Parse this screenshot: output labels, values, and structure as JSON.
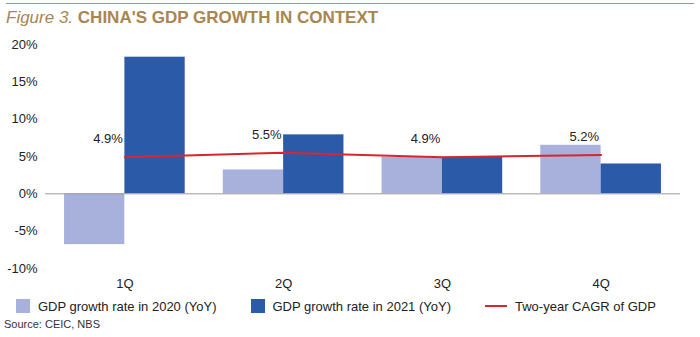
{
  "chart_data": {
    "type": "bar",
    "figure_label": "Figure 3.",
    "title": "CHINA'S GDP GROWTH IN CONTEXT",
    "source": "Source: CEIC, NBS",
    "categories": [
      "1Q",
      "2Q",
      "3Q",
      "4Q"
    ],
    "series": [
      {
        "name": "GDP growth rate in 2020 (YoY)",
        "type": "bar",
        "color": "#a7b1dc",
        "values": [
          -6.8,
          3.2,
          4.9,
          6.5
        ]
      },
      {
        "name": "GDP growth rate in 2021 (YoY)",
        "type": "bar",
        "color": "#2b5ba8",
        "values": [
          18.3,
          7.9,
          4.9,
          4.0
        ]
      },
      {
        "name": "Two-year CAGR of GDP",
        "type": "line",
        "color": "#d9262e",
        "values": [
          4.9,
          5.5,
          4.9,
          5.2
        ],
        "value_labels": [
          "4.9%",
          "5.5%",
          "4.9%",
          "5.2%"
        ],
        "data_labels": true
      }
    ],
    "ylim": [
      -10,
      20
    ],
    "yticks": [
      {
        "value": -10,
        "label": "-10%"
      },
      {
        "value": -5,
        "label": "-5%"
      },
      {
        "value": 0,
        "label": "0%"
      },
      {
        "value": 5,
        "label": "5%"
      },
      {
        "value": 10,
        "label": "10%"
      },
      {
        "value": 15,
        "label": "15%"
      },
      {
        "value": 20,
        "label": "20%"
      }
    ],
    "grid": false,
    "legend": "bottom"
  }
}
